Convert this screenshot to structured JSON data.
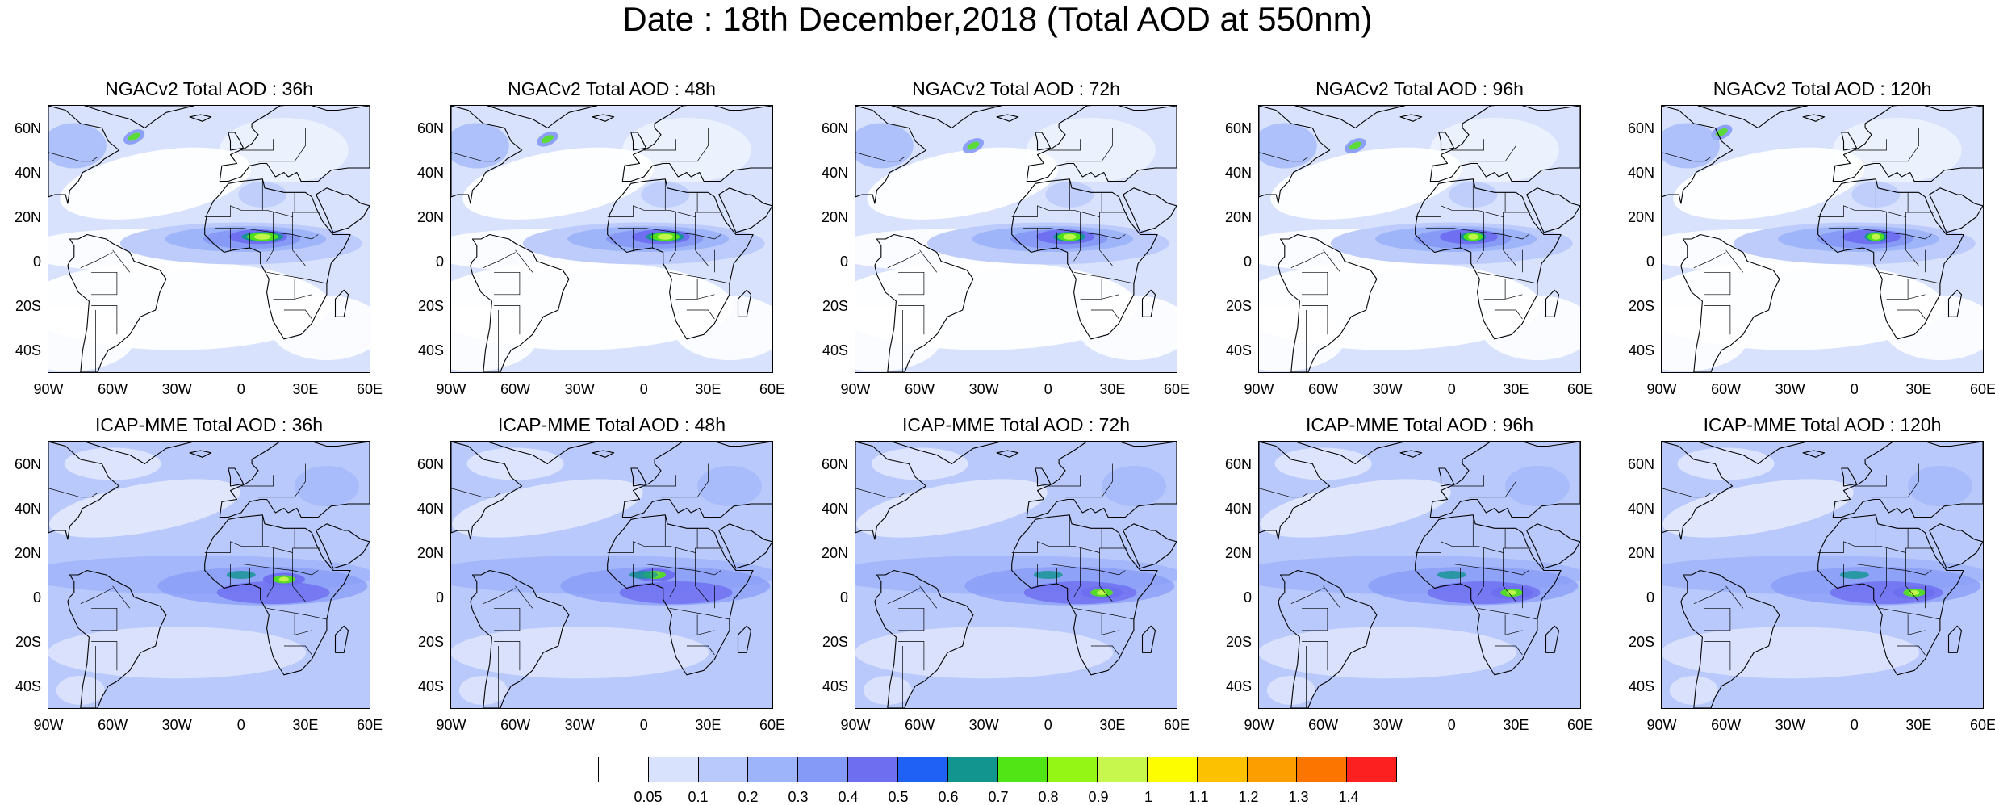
{
  "title": "Date : 18th December,2018 (Total AOD at 550nm)",
  "lat_ticks": [
    "60N",
    "40N",
    "20N",
    "0",
    "20S",
    "40S"
  ],
  "lon_ticks": [
    "90W",
    "60W",
    "30W",
    "0",
    "30E",
    "60E"
  ],
  "panels": [
    {
      "title": "NGACv2 Total AOD : 36h",
      "model": "NGACv2",
      "lead_hours": 36
    },
    {
      "title": "NGACv2 Total AOD : 48h",
      "model": "NGACv2",
      "lead_hours": 48
    },
    {
      "title": "NGACv2 Total AOD : 72h",
      "model": "NGACv2",
      "lead_hours": 72
    },
    {
      "title": "NGACv2 Total AOD : 96h",
      "model": "NGACv2",
      "lead_hours": 96
    },
    {
      "title": "NGACv2 Total AOD : 120h",
      "model": "NGACv2",
      "lead_hours": 120
    },
    {
      "title": "ICAP-MME Total AOD : 36h",
      "model": "ICAP-MME",
      "lead_hours": 36
    },
    {
      "title": "ICAP-MME Total AOD : 48h",
      "model": "ICAP-MME",
      "lead_hours": 48
    },
    {
      "title": "ICAP-MME Total AOD : 72h",
      "model": "ICAP-MME",
      "lead_hours": 72
    },
    {
      "title": "ICAP-MME Total AOD : 96h",
      "model": "ICAP-MME",
      "lead_hours": 96
    },
    {
      "title": "ICAP-MME Total AOD : 120h",
      "model": "ICAP-MME",
      "lead_hours": 120
    }
  ],
  "colorbar": {
    "labels": [
      "0.05",
      "0.1",
      "0.2",
      "0.3",
      "0.4",
      "0.5",
      "0.6",
      "0.7",
      "0.8",
      "0.9",
      "1",
      "1.1",
      "1.2",
      "1.3",
      "1.4"
    ],
    "colors": [
      "#ffffff",
      "#d8e2fc",
      "#bac9fb",
      "#9db3fa",
      "#8599f6",
      "#6e6ef0",
      "#1f60f5",
      "#11958e",
      "#52e516",
      "#94f614",
      "#c7f64d",
      "#fdfd00",
      "#fcc100",
      "#fc9d00",
      "#fc7500",
      "#fc2020"
    ]
  }
}
